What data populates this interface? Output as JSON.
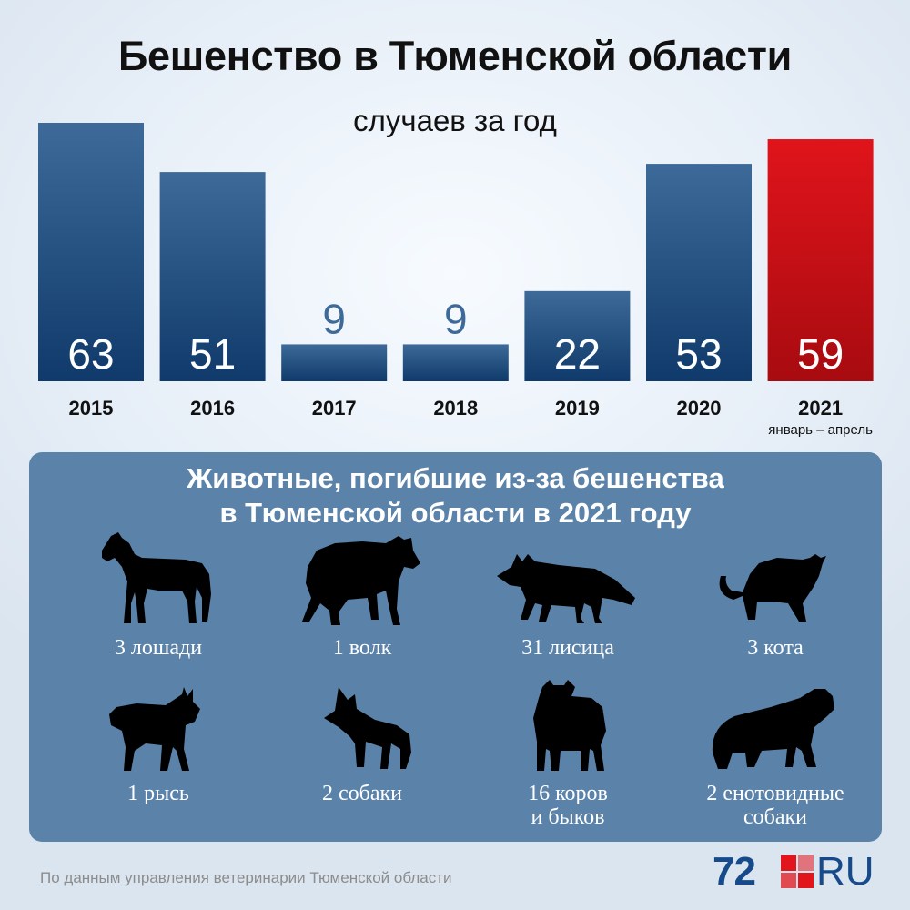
{
  "chart_data": {
    "type": "bar",
    "title": "Бешенство в Тюменской области",
    "subtitle": "случаев за год",
    "categories": [
      "2015",
      "2016",
      "2017",
      "2018",
      "2019",
      "2020",
      "2021"
    ],
    "category_notes": [
      "",
      "",
      "",
      "",
      "",
      "",
      "январь – апрель"
    ],
    "values": [
      63,
      51,
      9,
      9,
      22,
      53,
      59
    ],
    "highlight_index": 6,
    "ylim": [
      0,
      63
    ],
    "xlabel": "",
    "ylabel": ""
  },
  "colors": {
    "bar_top": "#3d6a98",
    "bar_bottom": "#0f3a6b",
    "highlight_top": "#e0141b",
    "highlight_bottom": "#a70b10",
    "label_outside": "#3d6a98",
    "panel": "#5b83aa",
    "logo_blue": "#174a8b",
    "logo_red": "#e3151c"
  },
  "animals_panel": {
    "title_line1": "Животные, погибшие из-за бешенства",
    "title_line2": "в Тюменской области в 2021 году",
    "items": [
      {
        "icon": "horse-icon",
        "label1": "3 лошади",
        "label2": ""
      },
      {
        "icon": "wolf-icon",
        "label1": "1 волк",
        "label2": ""
      },
      {
        "icon": "fox-icon",
        "label1": "31 лисица",
        "label2": ""
      },
      {
        "icon": "cat-icon",
        "label1": "3 кота",
        "label2": ""
      },
      {
        "icon": "lynx-icon",
        "label1": "1 рысь",
        "label2": ""
      },
      {
        "icon": "dog-icon",
        "label1": "2 собаки",
        "label2": ""
      },
      {
        "icon": "cow-icon",
        "label1": "16 коров",
        "label2": "и быков"
      },
      {
        "icon": "raccoon-dog-icon",
        "label1": "2 енотовидные",
        "label2": "собаки"
      }
    ]
  },
  "source": "По данным управления ветеринарии Тюменской области",
  "logo": {
    "number": "72",
    "suffix": "RU"
  }
}
